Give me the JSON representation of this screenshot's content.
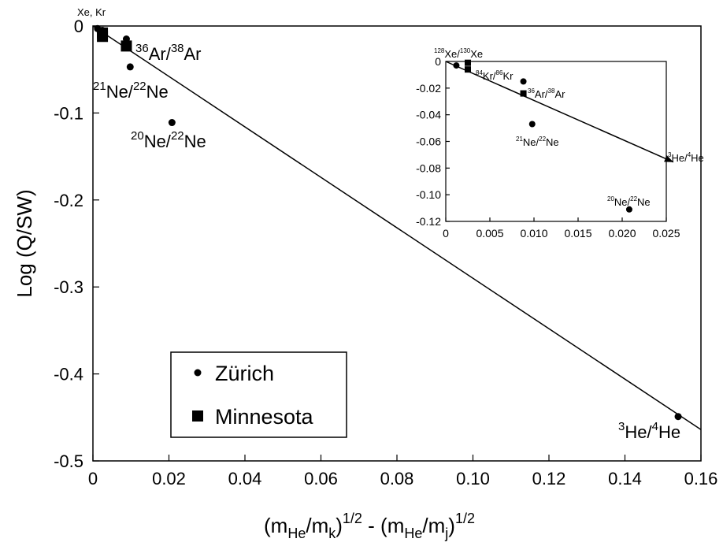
{
  "chart_data": [
    {
      "type": "scatter",
      "xlabel": {
        "base": "(m",
        "sub1": "He",
        "mid1": "/m",
        "sub2": "k",
        "sup1": "1/2",
        "mid2": " - (m",
        "sub3": "He",
        "mid3": "/m",
        "sub4": "j",
        "sup2": "1/2"
      },
      "ylabel": "Log (Q/SW)",
      "xlim": [
        0,
        0.16
      ],
      "ylim": [
        -0.5,
        0
      ],
      "xticks": [
        "0",
        "0.02",
        "0.04",
        "0.06",
        "0.08",
        "0.10",
        "0.12",
        "0.14",
        "0.16"
      ],
      "xtick_values": [
        0,
        0.02,
        0.04,
        0.06,
        0.08,
        0.1,
        0.12,
        0.14,
        0.16
      ],
      "yticks": [
        "0",
        "-0.1",
        "-0.2",
        "-0.3",
        "-0.4",
        "-0.5"
      ],
      "ytick_values": [
        0,
        -0.1,
        -0.2,
        -0.3,
        -0.4,
        -0.5
      ],
      "fit_line": {
        "x": [
          0,
          0.16
        ],
        "y": [
          0,
          -0.464
        ]
      },
      "series": [
        {
          "name": "Zürich",
          "marker": "circle",
          "points": [
            {
              "x": 0.0012,
              "y": -0.003
            },
            {
              "x": 0.0025,
              "y": -0.005
            },
            {
              "x": 0.0088,
              "y": -0.015
            },
            {
              "x": 0.0098,
              "y": -0.047
            },
            {
              "x": 0.0208,
              "y": -0.111
            },
            {
              "x": 0.154,
              "y": -0.449
            }
          ]
        },
        {
          "name": "Minnesota",
          "marker": "square",
          "points": [
            {
              "x": 0.0025,
              "y": -0.008
            },
            {
              "x": 0.0025,
              "y": -0.012
            },
            {
              "x": 0.0088,
              "y": -0.023
            }
          ]
        }
      ],
      "annotations": {
        "xekr": "Xe, Kr",
        "ar": {
          "sup1": "36",
          "t1": "Ar/",
          "sup2": "38",
          "t2": "Ar"
        },
        "ne21": {
          "sup1": "21",
          "t1": "Ne/",
          "sup2": "22",
          "t2": "Ne"
        },
        "ne20": {
          "sup1": "20",
          "t1": "Ne/",
          "sup2": "22",
          "t2": "Ne"
        },
        "he": {
          "sup1": "3",
          "t1": "He/",
          "sup2": "4",
          "t2": "He"
        }
      },
      "legend": {
        "position": "bottom-left",
        "entries": [
          "Zürich",
          "Minnesota"
        ]
      }
    },
    {
      "type": "scatter",
      "role": "inset",
      "xlim": [
        0,
        0.025
      ],
      "ylim": [
        -0.12,
        0
      ],
      "xticks": [
        "0",
        "0.005",
        "0.010",
        "0.015",
        "0.020",
        "0.025"
      ],
      "xtick_values": [
        0,
        0.005,
        0.01,
        0.015,
        0.02,
        0.025
      ],
      "yticks": [
        "0",
        "-0.02",
        "-0.04",
        "-0.06",
        "-0.08",
        "-0.10",
        "-0.12"
      ],
      "ytick_values": [
        0,
        -0.02,
        -0.04,
        -0.06,
        -0.08,
        -0.1,
        -0.12
      ],
      "fit_line": {
        "x": [
          0,
          0.0258
        ],
        "y": [
          0,
          -0.0755
        ]
      },
      "series": [
        {
          "name": "Zürich",
          "marker": "circle",
          "points": [
            {
              "x": 0.0012,
              "y": -0.003
            },
            {
              "x": 0.0088,
              "y": -0.015
            },
            {
              "x": 0.0098,
              "y": -0.047
            },
            {
              "x": 0.0208,
              "y": -0.111
            }
          ]
        },
        {
          "name": "Minnesota",
          "marker": "square",
          "points": [
            {
              "x": 0.0025,
              "y": -0.001
            },
            {
              "x": 0.0025,
              "y": -0.006
            },
            {
              "x": 0.0088,
              "y": -0.024
            }
          ]
        }
      ],
      "annotations": {
        "xe": {
          "sup1": "128",
          "t1": "Xe/",
          "sup2": "130",
          "t2": "Xe"
        },
        "kr": {
          "sup1": "84",
          "t1": "Kr/",
          "sup2": "86",
          "t2": "Kr"
        },
        "ar": {
          "sup1": "36",
          "t1": "Ar/",
          "sup2": "38",
          "t2": "Ar"
        },
        "ne21": {
          "sup1": "21",
          "t1": "Ne/",
          "sup2": "22",
          "t2": "Ne"
        },
        "ne20": {
          "sup1": "20",
          "t1": "Ne/",
          "sup2": "22",
          "t2": "Ne"
        },
        "he": {
          "sup1": "3",
          "t1": "He/",
          "sup2": "4",
          "t2": "He"
        }
      }
    }
  ]
}
